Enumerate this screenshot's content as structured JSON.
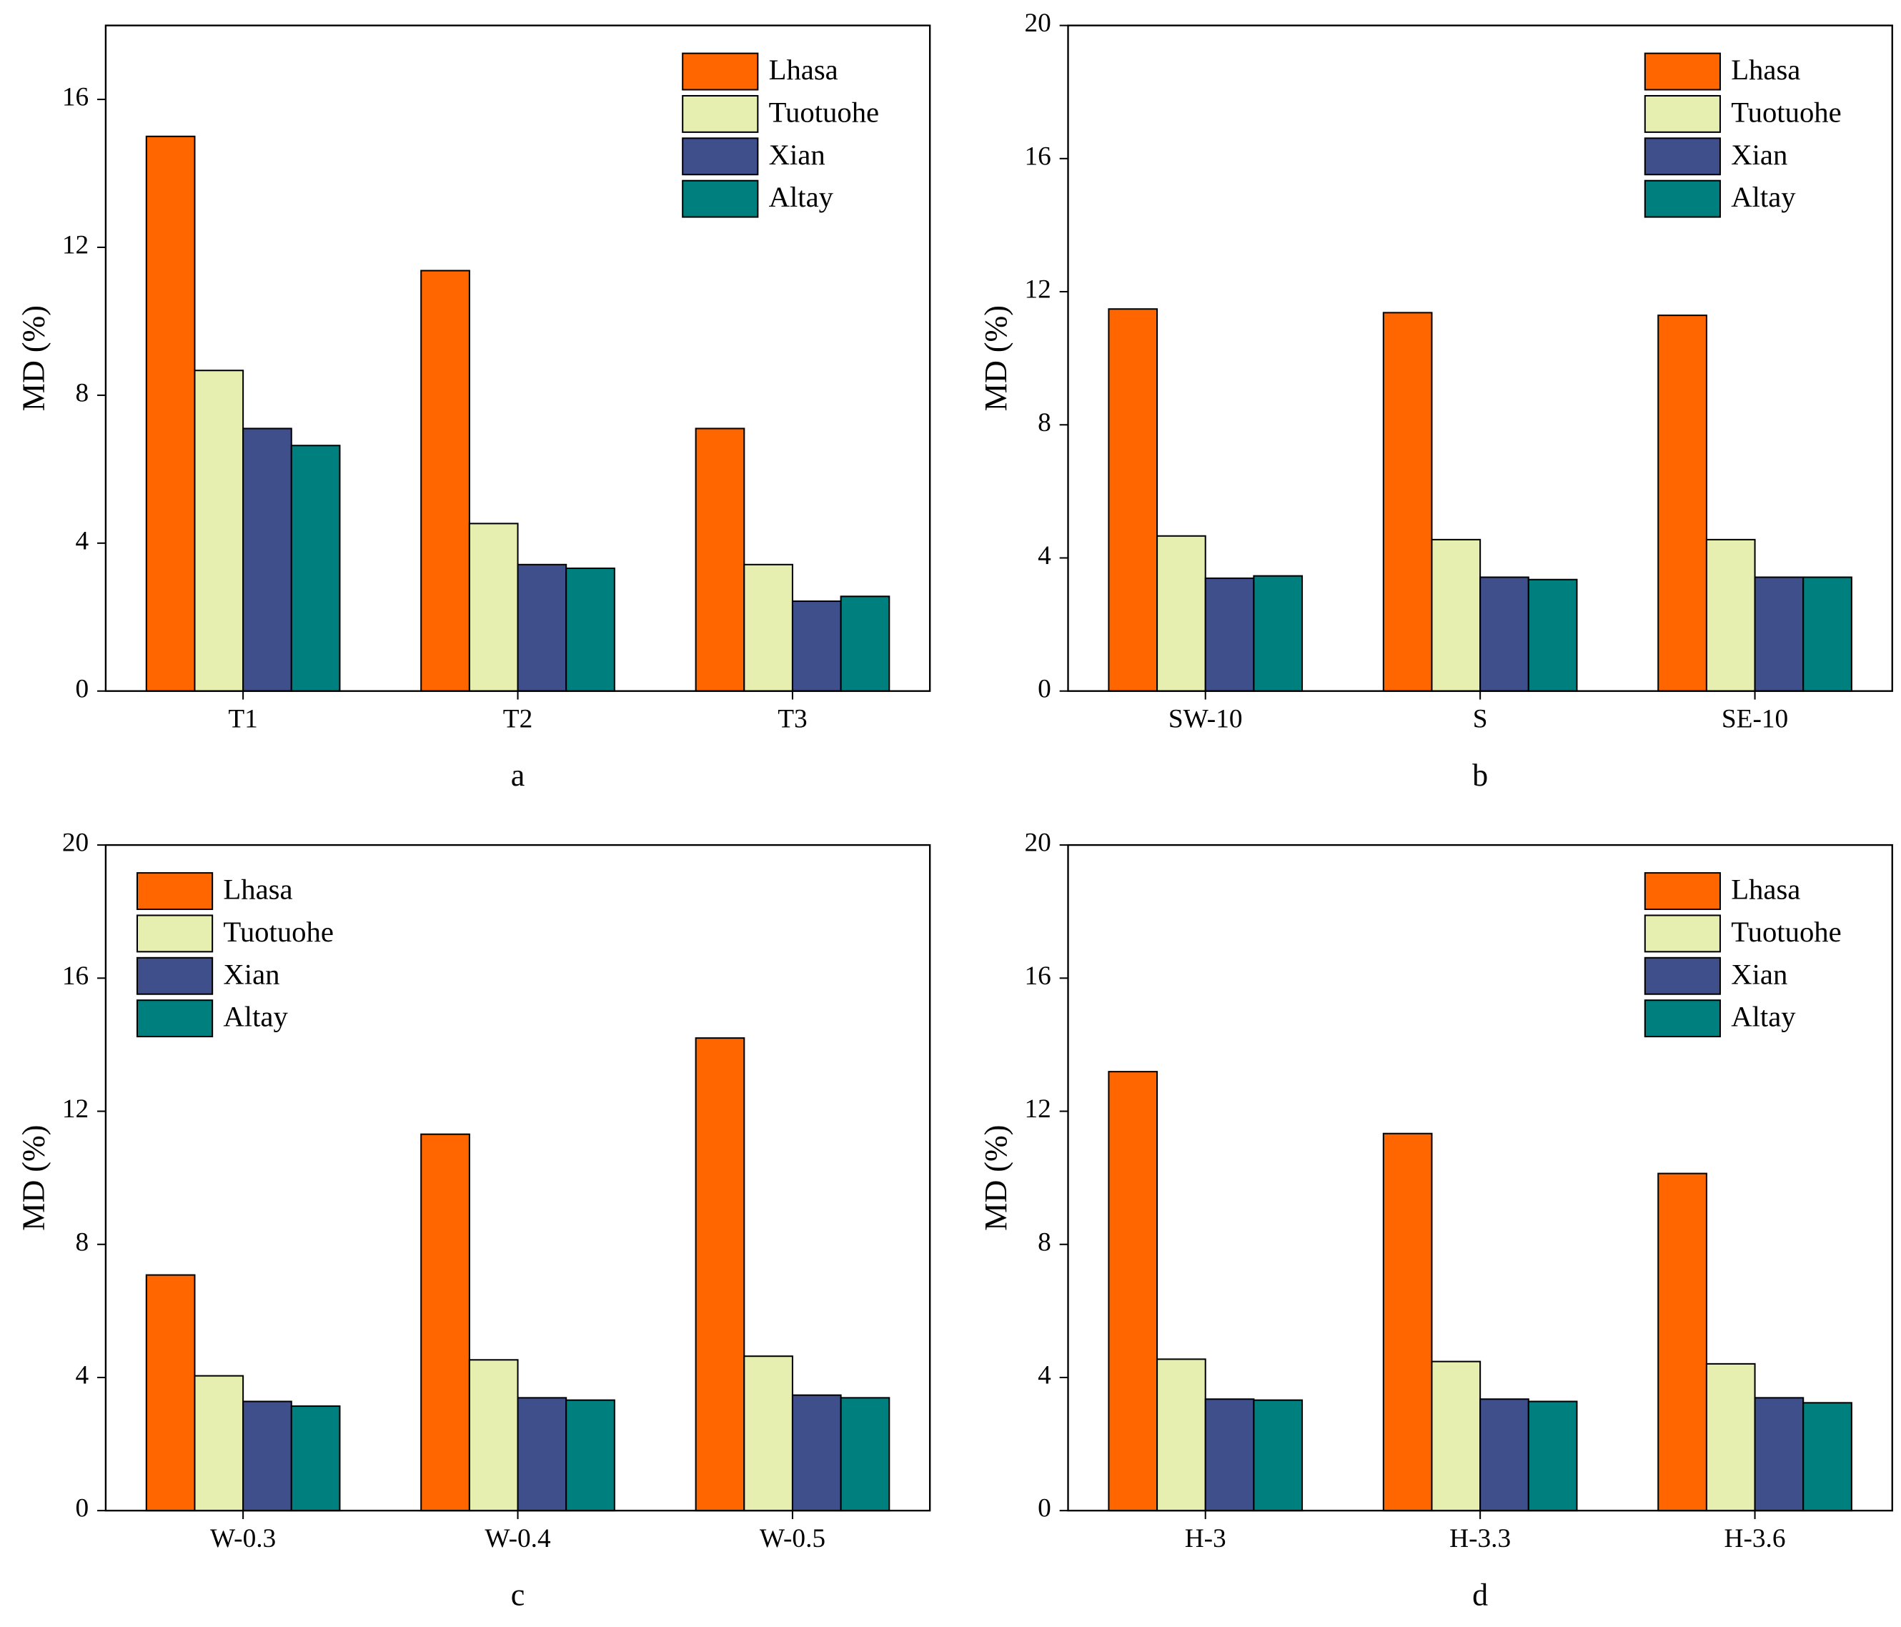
{
  "chart_data": [
    {
      "type": "bar",
      "caption": "a",
      "ylabel": "MD (%)",
      "categories": [
        "T1",
        "T2",
        "T3"
      ],
      "series": [
        {
          "name": "Lhasa",
          "color": "#ff6600",
          "values": [
            15.0,
            11.37,
            7.1
          ]
        },
        {
          "name": "Tuotuohe",
          "color": "#e6efb0",
          "values": [
            8.67,
            4.53,
            3.42
          ]
        },
        {
          "name": "Xian",
          "color": "#3f4f8c",
          "values": [
            7.1,
            3.42,
            2.43
          ]
        },
        {
          "name": "Altay",
          "color": "#007f7f",
          "values": [
            6.64,
            3.32,
            2.56
          ]
        }
      ],
      "ylim": [
        0,
        18
      ],
      "yticks": [
        0,
        4,
        8,
        12,
        16
      ],
      "legend": "upper right"
    },
    {
      "type": "bar",
      "caption": "b",
      "ylabel": "MD (%)",
      "categories": [
        "SW-10",
        "S",
        "SE-10"
      ],
      "series": [
        {
          "name": "Lhasa",
          "color": "#ff6600",
          "values": [
            11.48,
            11.37,
            11.29
          ]
        },
        {
          "name": "Tuotuohe",
          "color": "#e6efb0",
          "values": [
            4.66,
            4.55,
            4.55
          ]
        },
        {
          "name": "Xian",
          "color": "#3f4f8c",
          "values": [
            3.39,
            3.42,
            3.42
          ]
        },
        {
          "name": "Altay",
          "color": "#007f7f",
          "values": [
            3.46,
            3.35,
            3.42
          ]
        }
      ],
      "ylim": [
        0,
        20
      ],
      "yticks": [
        0,
        4,
        8,
        12,
        16,
        20
      ],
      "legend": "upper right"
    },
    {
      "type": "bar",
      "caption": "c",
      "ylabel": "MD (%)",
      "categories": [
        "W-0.3",
        "W-0.4",
        "W-0.5"
      ],
      "series": [
        {
          "name": "Lhasa",
          "color": "#ff6600",
          "values": [
            7.08,
            11.31,
            14.2
          ]
        },
        {
          "name": "Tuotuohe",
          "color": "#e6efb0",
          "values": [
            4.05,
            4.53,
            4.64
          ]
        },
        {
          "name": "Xian",
          "color": "#3f4f8c",
          "values": [
            3.28,
            3.39,
            3.47
          ]
        },
        {
          "name": "Altay",
          "color": "#007f7f",
          "values": [
            3.14,
            3.32,
            3.39
          ]
        }
      ],
      "ylim": [
        0,
        20
      ],
      "yticks": [
        0,
        4,
        8,
        12,
        16,
        20
      ],
      "legend": "upper left"
    },
    {
      "type": "bar",
      "caption": "d",
      "ylabel": "MD (%)",
      "categories": [
        "H-3",
        "H-3.3",
        "H-3.6"
      ],
      "series": [
        {
          "name": "Lhasa",
          "color": "#ff6600",
          "values": [
            13.19,
            11.33,
            10.13
          ]
        },
        {
          "name": "Tuotuohe",
          "color": "#e6efb0",
          "values": [
            4.55,
            4.48,
            4.41
          ]
        },
        {
          "name": "Xian",
          "color": "#3f4f8c",
          "values": [
            3.35,
            3.35,
            3.39
          ]
        },
        {
          "name": "Altay",
          "color": "#007f7f",
          "values": [
            3.32,
            3.28,
            3.24
          ]
        }
      ],
      "ylim": [
        0,
        20
      ],
      "yticks": [
        0,
        4,
        8,
        12,
        16,
        20
      ],
      "legend": "upper right"
    }
  ]
}
